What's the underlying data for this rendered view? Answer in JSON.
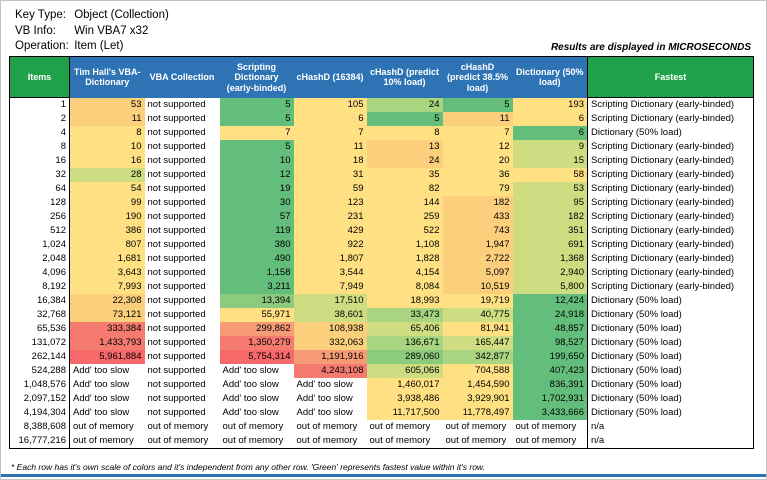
{
  "header_info": {
    "rows": [
      {
        "label": "Key Type:",
        "value": "Object (Collection)"
      },
      {
        "label": "VB Info:",
        "value": "Win VBA7 x32"
      },
      {
        "label": "Operation:",
        "value": "Item (Let)"
      }
    ],
    "units_note": "Results are displayed in MICROSECONDS"
  },
  "table": {
    "columns": [
      {
        "key": "items",
        "label": "Items",
        "style": "green"
      },
      {
        "key": "timhall-vba-dictionary",
        "label": "Tim Hall's VBA-Dictionary",
        "style": "blue"
      },
      {
        "key": "vba-collection",
        "label": "VBA Collection",
        "style": "blue"
      },
      {
        "key": "scripting-dictionary",
        "label": "Scripting Dictionary (early-binded)",
        "style": "blue"
      },
      {
        "key": "chashd-16384",
        "label": "cHashD (16384)",
        "style": "blue"
      },
      {
        "key": "chashd-predict-10",
        "label": "cHashD (predict 10% load)",
        "style": "blue"
      },
      {
        "key": "chashd-predict-385",
        "label": "cHashD (predict 38.5% load)",
        "style": "blue"
      },
      {
        "key": "dictionary-50-load",
        "label": "Dictionary (50% load)",
        "style": "blue"
      },
      {
        "key": "fastest",
        "label": "Fastest",
        "style": "green"
      }
    ],
    "palette": {
      "G": "#63BE7B",
      "G2": "#8CCB7D",
      "GY": "#A9D480",
      "YG": "#CEDD81",
      "Y": "#FFE183",
      "YO": "#FBCF7C",
      "OR": "#F69B76",
      "R2": "#F57B71",
      "R": "#F8696B",
      "W": "#FFFFFF"
    },
    "rows": [
      {
        "items": "1",
        "cells": [
          "53",
          "not supported",
          "5",
          "105",
          "24",
          "5",
          "193"
        ],
        "colors": [
          "YO",
          "W",
          "G",
          "Y",
          "GY",
          "G",
          "Y"
        ],
        "fastest": "Scripting Dictionary (early-binded)"
      },
      {
        "items": "2",
        "cells": [
          "11",
          "not supported",
          "5",
          "6",
          "5",
          "11",
          "6"
        ],
        "colors": [
          "YO",
          "W",
          "G",
          "Y",
          "G",
          "YO",
          "Y"
        ],
        "fastest": "Scripting Dictionary (early-binded)"
      },
      {
        "items": "4",
        "cells": [
          "8",
          "not supported",
          "7",
          "7",
          "8",
          "7",
          "6"
        ],
        "colors": [
          "Y",
          "W",
          "Y",
          "Y",
          "Y",
          "Y",
          "G"
        ],
        "fastest": "Dictionary (50% load)"
      },
      {
        "items": "8",
        "cells": [
          "10",
          "not supported",
          "5",
          "11",
          "13",
          "12",
          "9"
        ],
        "colors": [
          "Y",
          "W",
          "G",
          "Y",
          "YO",
          "Y",
          "YG"
        ],
        "fastest": "Scripting Dictionary (early-binded)"
      },
      {
        "items": "16",
        "cells": [
          "16",
          "not supported",
          "10",
          "18",
          "24",
          "20",
          "15"
        ],
        "colors": [
          "Y",
          "W",
          "G",
          "Y",
          "YO",
          "Y",
          "YG"
        ],
        "fastest": "Scripting Dictionary (early-binded)"
      },
      {
        "items": "32",
        "cells": [
          "28",
          "not supported",
          "12",
          "31",
          "35",
          "36",
          "58"
        ],
        "colors": [
          "YG",
          "W",
          "G",
          "Y",
          "Y",
          "Y",
          "Y"
        ],
        "fastest": "Scripting Dictionary (early-binded)"
      },
      {
        "items": "64",
        "cells": [
          "54",
          "not supported",
          "19",
          "59",
          "82",
          "79",
          "53"
        ],
        "colors": [
          "Y",
          "W",
          "G",
          "Y",
          "Y",
          "Y",
          "YG"
        ],
        "fastest": "Scripting Dictionary (early-binded)"
      },
      {
        "items": "128",
        "cells": [
          "99",
          "not supported",
          "30",
          "123",
          "144",
          "182",
          "95"
        ],
        "colors": [
          "Y",
          "W",
          "G",
          "Y",
          "Y",
          "YO",
          "YG"
        ],
        "fastest": "Scripting Dictionary (early-binded)"
      },
      {
        "items": "256",
        "cells": [
          "190",
          "not supported",
          "57",
          "231",
          "259",
          "433",
          "182"
        ],
        "colors": [
          "Y",
          "W",
          "G",
          "Y",
          "Y",
          "YO",
          "YG"
        ],
        "fastest": "Scripting Dictionary (early-binded)"
      },
      {
        "items": "512",
        "cells": [
          "386",
          "not supported",
          "119",
          "429",
          "522",
          "743",
          "351"
        ],
        "colors": [
          "Y",
          "W",
          "G",
          "Y",
          "Y",
          "YO",
          "YG"
        ],
        "fastest": "Scripting Dictionary (early-binded)"
      },
      {
        "items": "1,024",
        "cells": [
          "807",
          "not supported",
          "380",
          "922",
          "1,108",
          "1,947",
          "691"
        ],
        "colors": [
          "Y",
          "W",
          "G",
          "Y",
          "Y",
          "YO",
          "YG"
        ],
        "fastest": "Scripting Dictionary (early-binded)"
      },
      {
        "items": "2,048",
        "cells": [
          "1,681",
          "not supported",
          "490",
          "1,807",
          "1,828",
          "2,722",
          "1,368"
        ],
        "colors": [
          "Y",
          "W",
          "G",
          "Y",
          "Y",
          "YO",
          "YG"
        ],
        "fastest": "Scripting Dictionary (early-binded)"
      },
      {
        "items": "4,096",
        "cells": [
          "3,643",
          "not supported",
          "1,158",
          "3,544",
          "4,154",
          "5,097",
          "2,940"
        ],
        "colors": [
          "Y",
          "W",
          "G",
          "Y",
          "Y",
          "YO",
          "YG"
        ],
        "fastest": "Scripting Dictionary (early-binded)"
      },
      {
        "items": "8,192",
        "cells": [
          "7,993",
          "not supported",
          "3,211",
          "7,949",
          "8,084",
          "10,519",
          "5,800"
        ],
        "colors": [
          "Y",
          "W",
          "G",
          "Y",
          "Y",
          "YO",
          "YG"
        ],
        "fastest": "Scripting Dictionary (early-binded)"
      },
      {
        "items": "16,384",
        "cells": [
          "22,308",
          "not supported",
          "13,394",
          "17,510",
          "18,993",
          "19,719",
          "12,424"
        ],
        "colors": [
          "YO",
          "W",
          "G2",
          "YG",
          "Y",
          "Y",
          "G"
        ],
        "fastest": "Dictionary (50% load)"
      },
      {
        "items": "32,768",
        "cells": [
          "73,121",
          "not supported",
          "55,971",
          "38,601",
          "33,473",
          "40,775",
          "24,918"
        ],
        "colors": [
          "YO",
          "W",
          "Y",
          "YG",
          "GY",
          "YG",
          "G"
        ],
        "fastest": "Dictionary (50% load)"
      },
      {
        "items": "65,536",
        "cells": [
          "333,384",
          "not supported",
          "299,862",
          "108,938",
          "65,406",
          "81,941",
          "48,857"
        ],
        "colors": [
          "R2",
          "W",
          "OR",
          "YO",
          "YG",
          "Y",
          "G"
        ],
        "fastest": "Dictionary (50% load)"
      },
      {
        "items": "131,072",
        "cells": [
          "1,433,793",
          "not supported",
          "1,350,279",
          "332,063",
          "136,671",
          "165,447",
          "98,527"
        ],
        "colors": [
          "R2",
          "W",
          "R2",
          "YO",
          "GY",
          "YG",
          "G"
        ],
        "fastest": "Dictionary (50% load)"
      },
      {
        "items": "262,144",
        "cells": [
          "5,961,884",
          "not supported",
          "5,754,314",
          "1,191,916",
          "289,060",
          "342,877",
          "199,650"
        ],
        "colors": [
          "R",
          "W",
          "R",
          "OR",
          "G2",
          "GY",
          "G"
        ],
        "fastest": "Dictionary (50% load)"
      },
      {
        "items": "524,288",
        "cells": [
          "Add' too slow",
          "not supported",
          "Add' too slow",
          "4,243,108",
          "605,066",
          "704,588",
          "407,423"
        ],
        "colors": [
          "W",
          "W",
          "W",
          "R2",
          "YG",
          "Y",
          "G"
        ],
        "fastest": "Dictionary (50% load)"
      },
      {
        "items": "1,048,576",
        "cells": [
          "Add' too slow",
          "not supported",
          "Add' too slow",
          "Add' too slow",
          "1,460,017",
          "1,454,590",
          "836,391"
        ],
        "colors": [
          "W",
          "W",
          "W",
          "W",
          "Y",
          "Y",
          "G"
        ],
        "fastest": "Dictionary (50% load)"
      },
      {
        "items": "2,097,152",
        "cells": [
          "Add' too slow",
          "not supported",
          "Add' too slow",
          "Add' too slow",
          "3,938,486",
          "3,929,901",
          "1,702,931"
        ],
        "colors": [
          "W",
          "W",
          "W",
          "W",
          "Y",
          "Y",
          "G"
        ],
        "fastest": "Dictionary (50% load)"
      },
      {
        "items": "4,194,304",
        "cells": [
          "Add' too slow",
          "not supported",
          "Add' too slow",
          "Add' too slow",
          "11,717,500",
          "11,778,497",
          "3,433,666"
        ],
        "colors": [
          "W",
          "W",
          "W",
          "W",
          "Y",
          "Y",
          "G"
        ],
        "fastest": "Dictionary (50% load)"
      },
      {
        "items": "8,388,608",
        "cells": [
          "out of memory",
          "out of memory",
          "out of memory",
          "out of memory",
          "out of memory",
          "out of memory",
          "out of memory"
        ],
        "colors": [
          "W",
          "W",
          "W",
          "W",
          "W",
          "W",
          "W"
        ],
        "fastest": "n/a"
      },
      {
        "items": "16,777,216",
        "cells": [
          "out of memory",
          "out of memory",
          "out of memory",
          "out of memory",
          "out of memory",
          "out of memory",
          "out of memory"
        ],
        "colors": [
          "W",
          "W",
          "W",
          "W",
          "W",
          "W",
          "W"
        ],
        "fastest": "n/a"
      }
    ],
    "footnote": "* Each row has it's own scale of colors and it's independent from any other row. 'Green' represents fastest value within it's row."
  }
}
